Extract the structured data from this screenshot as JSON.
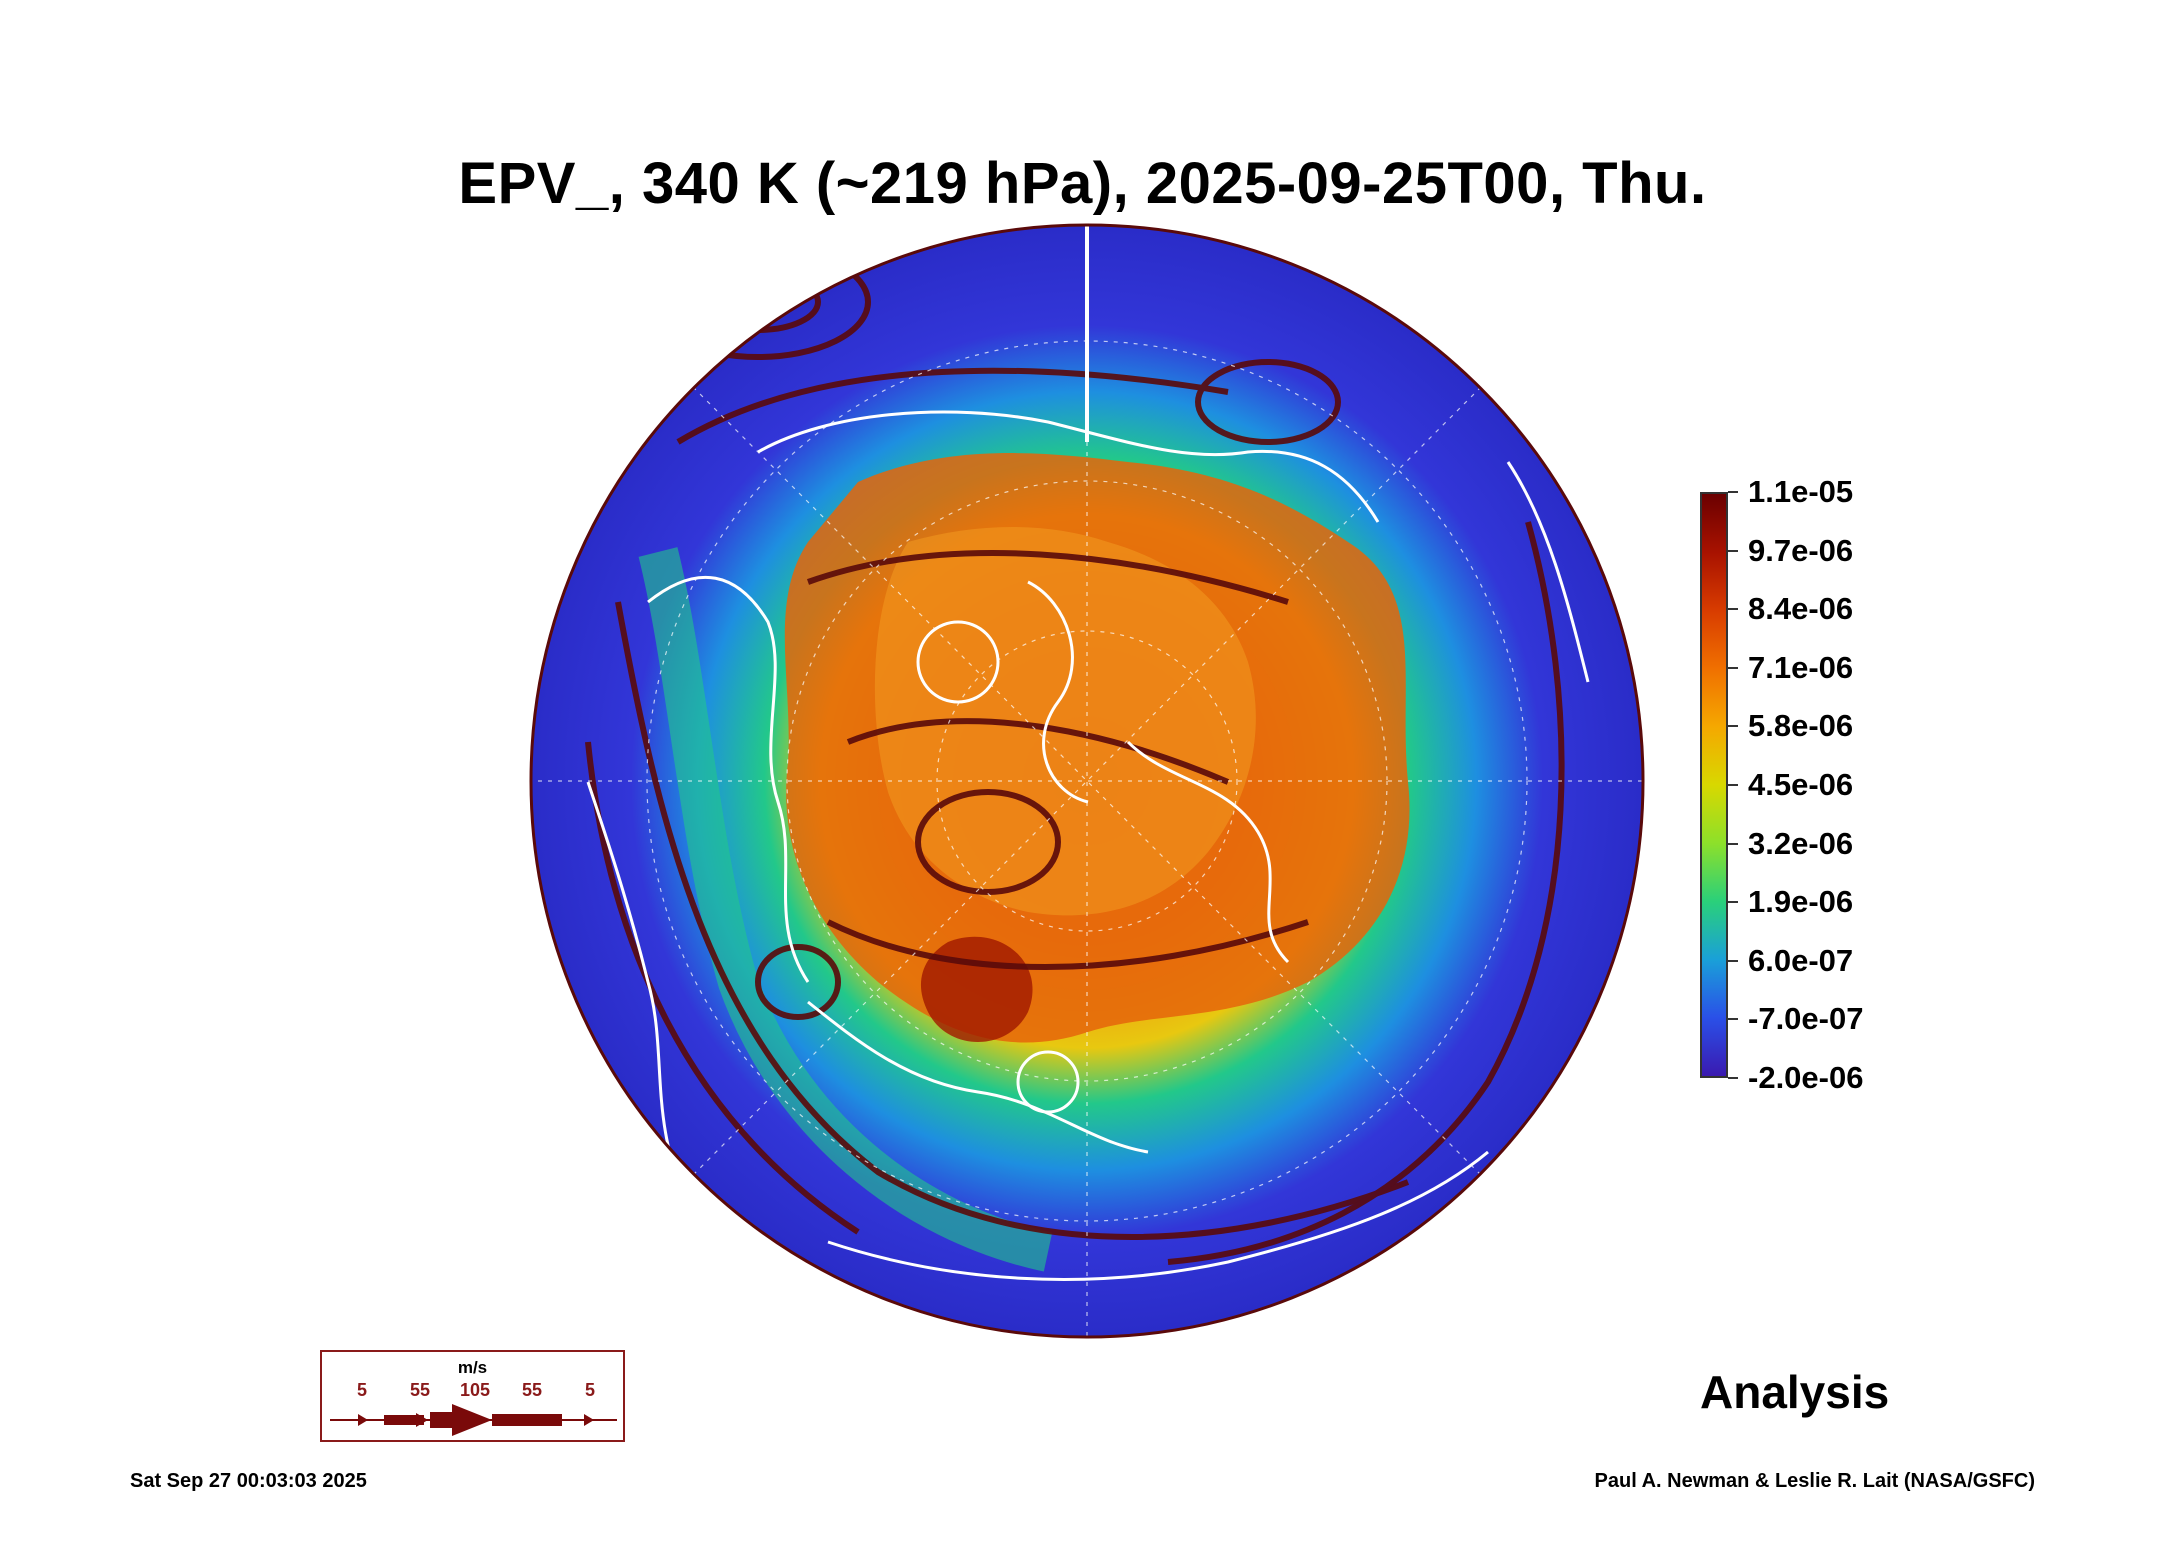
{
  "title": "EPV_, 340 K (~219 hPa), 2025-09-25T00, Thu.",
  "colorbar": {
    "labels": [
      "1.1e-05",
      "9.7e-06",
      "8.4e-06",
      "7.1e-06",
      "5.8e-06",
      "4.5e-06",
      "3.2e-06",
      "1.9e-06",
      "6.0e-07",
      "-7.0e-07",
      "-2.0e-06"
    ],
    "colors": [
      "#6b0000",
      "#a81200",
      "#d83c00",
      "#f07000",
      "#f5a800",
      "#d8d800",
      "#8de02a",
      "#2ad07a",
      "#1aa0d8",
      "#2a50e8",
      "#3a1ab0"
    ]
  },
  "map": {
    "projection": "orthographic, north polar view",
    "field": "EPV_",
    "palette": {
      "ocean_low": "#3236d8",
      "mid": "#22c88a",
      "high": "#f08a10",
      "core": "#a01800",
      "streamline": "#5a0a0a",
      "coastline": "#ffffff"
    }
  },
  "wind_legend": {
    "unit": "m/s",
    "values": [
      "5",
      "55",
      "105",
      "55",
      "5"
    ]
  },
  "analysis_label": "Analysis",
  "footer": {
    "timestamp": "Sat Sep 27 00:03:03 2025",
    "credit": "Paul A. Newman & Leslie R. Lait (NASA/GSFC)"
  }
}
